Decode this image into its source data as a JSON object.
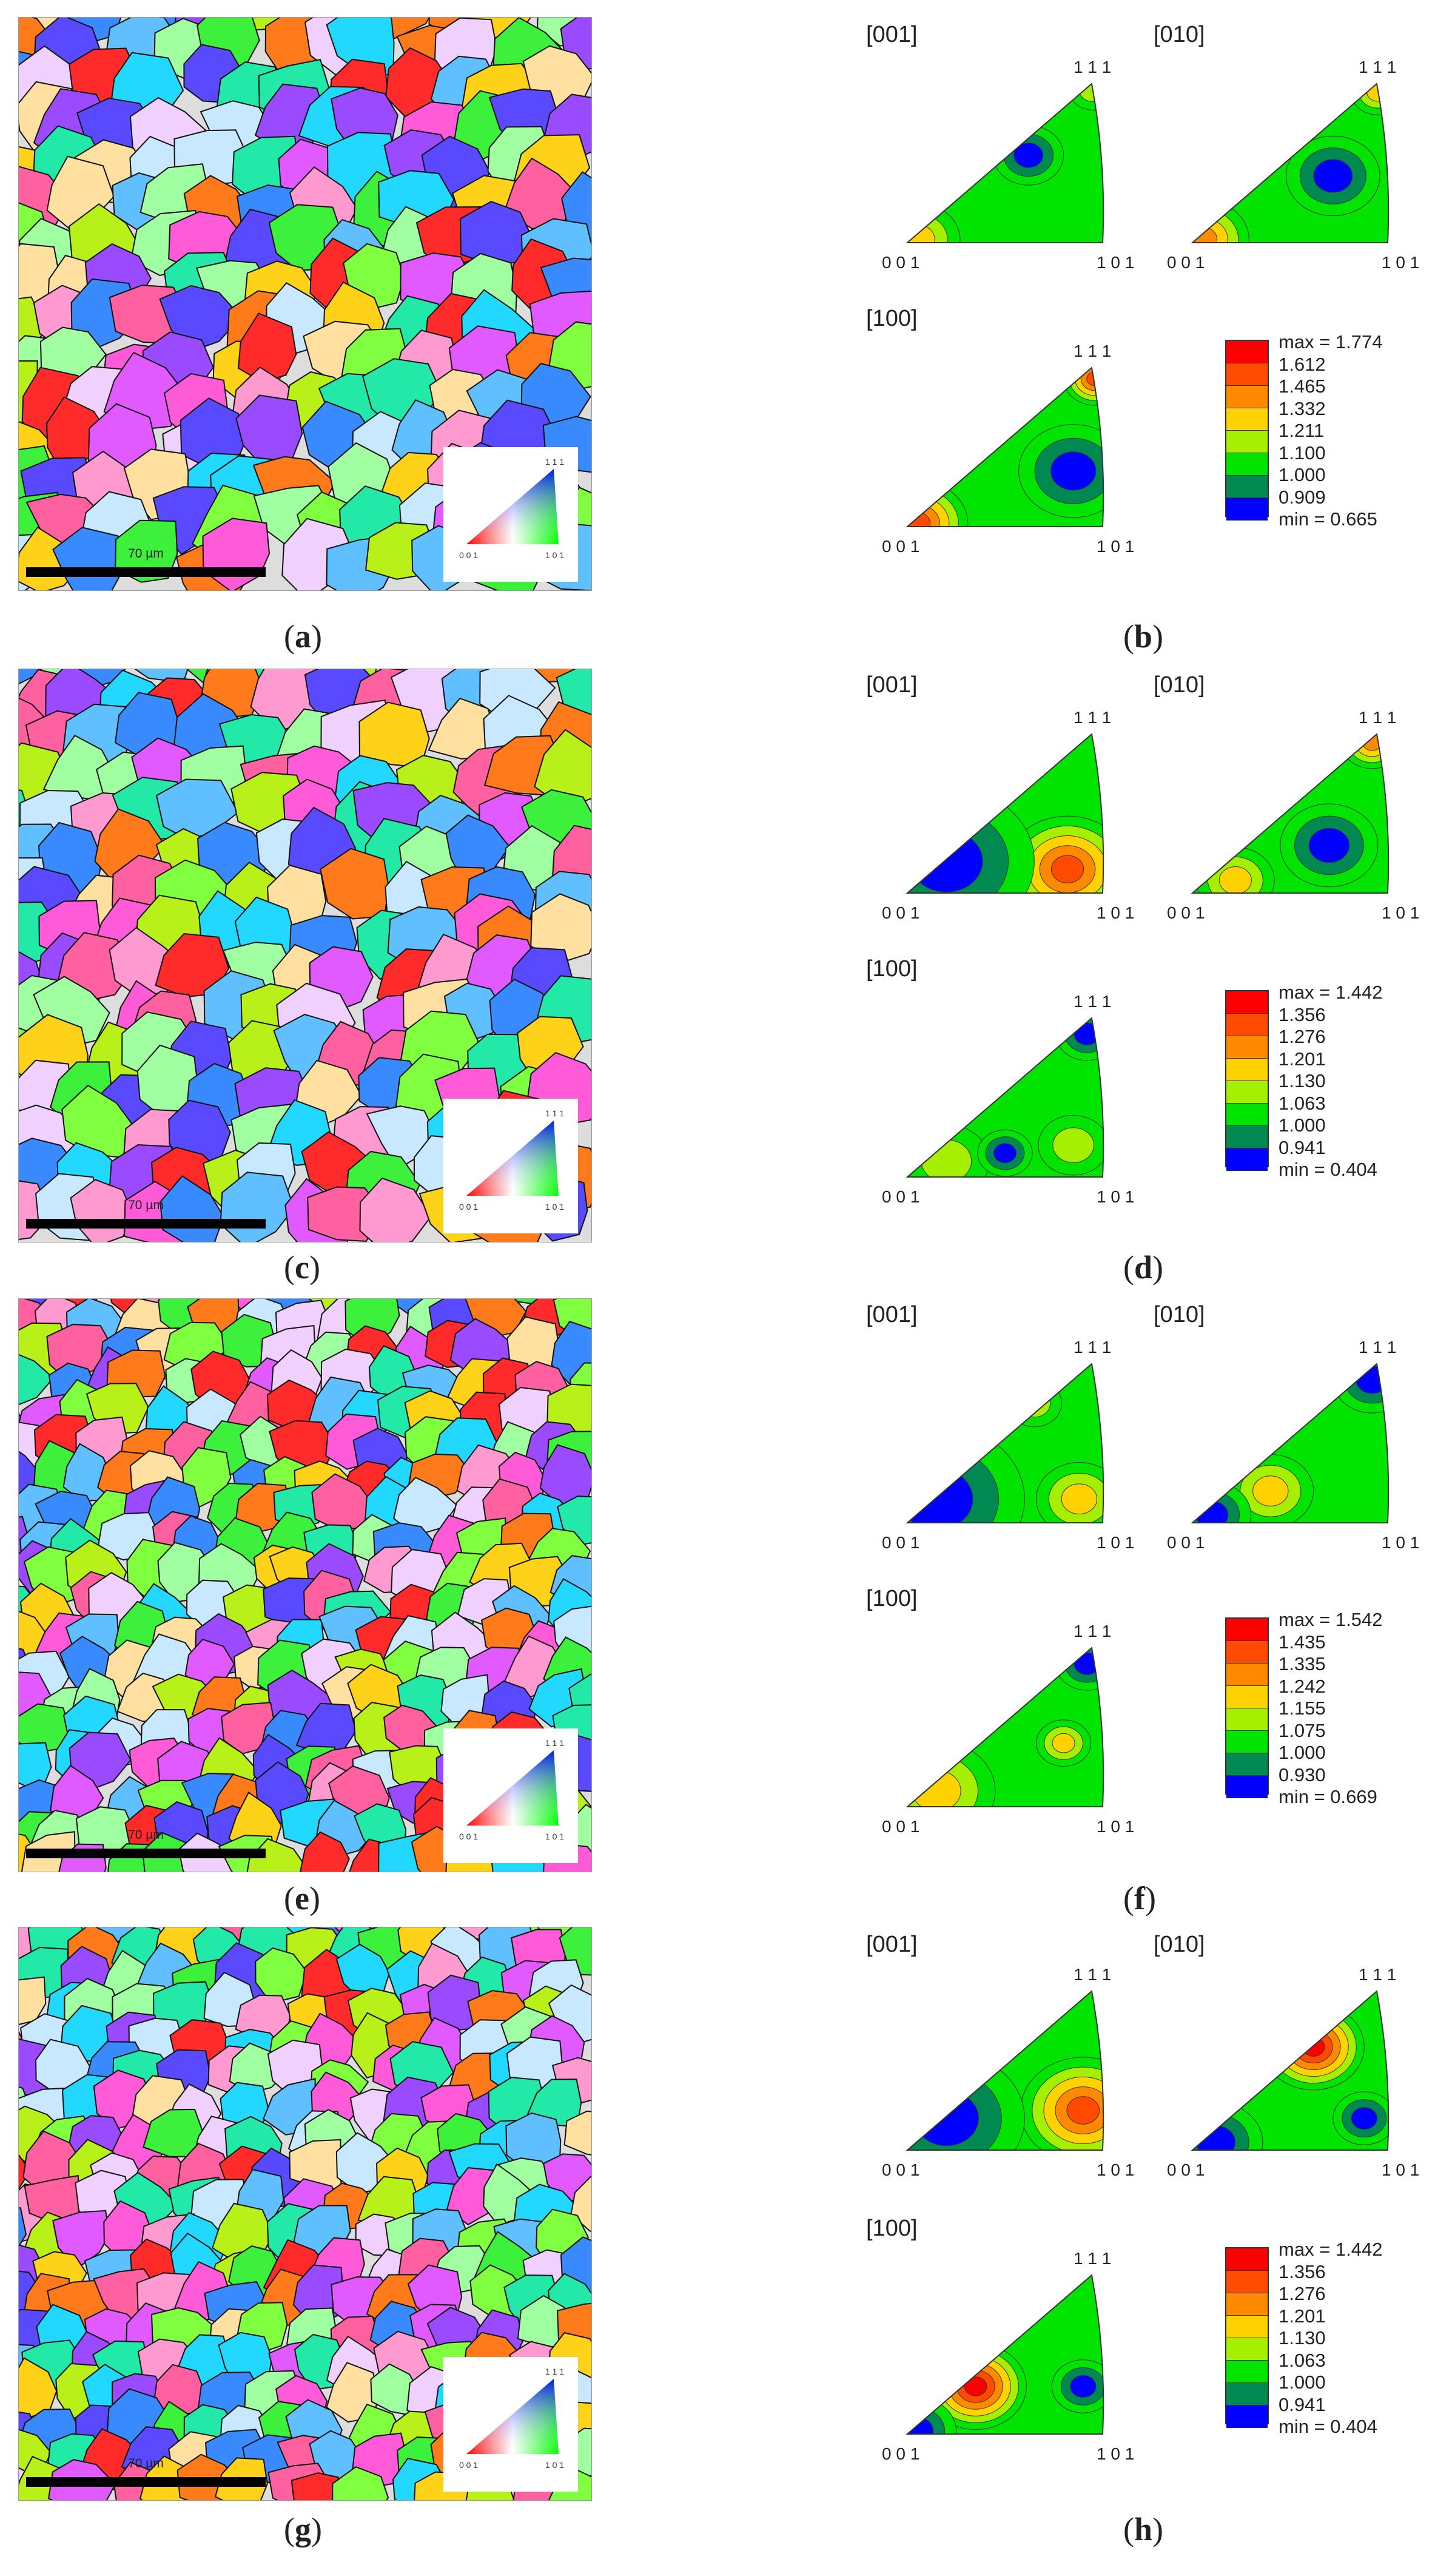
{
  "panel_labels": [
    "a",
    "b",
    "c",
    "d",
    "e",
    "f",
    "g",
    "h"
  ],
  "scale_bar_text": "70 µm",
  "ipf_key": {
    "corner_001": "0 0 1",
    "corner_101": "1 0 1",
    "corner_111": "1 1 1"
  },
  "pole_figure_titles": [
    "[001]",
    "[010]",
    "[100]"
  ],
  "triangle_corners": {
    "bottom_left": "0 0 1",
    "bottom_right": "1 0 1",
    "top": "1 1 1"
  },
  "level_colors": [
    "#ff0000",
    "#ff4a00",
    "#ff8a00",
    "#ffd200",
    "#a4f000",
    "#00e400",
    "#008a52",
    "#0000ff"
  ],
  "legends": [
    {
      "entries": [
        "max = 1.774",
        "1.612",
        "1.465",
        "1.332",
        "1.211",
        "1.100",
        "1.000",
        "0.909",
        "min = 0.665"
      ]
    },
    {
      "entries": [
        "max = 1.442",
        "1.356",
        "1.276",
        "1.201",
        "1.130",
        "1.063",
        "1.000",
        "0.941",
        "min = 0.404"
      ]
    },
    {
      "entries": [
        "max = 1.542",
        "1.435",
        "1.335",
        "1.242",
        "1.155",
        "1.075",
        "1.000",
        "0.930",
        "min = 0.669"
      ]
    },
    {
      "entries": [
        "max = 1.442",
        "1.356",
        "1.276",
        "1.201",
        "1.130",
        "1.063",
        "1.000",
        "0.941",
        "min = 0.404"
      ]
    }
  ]
}
